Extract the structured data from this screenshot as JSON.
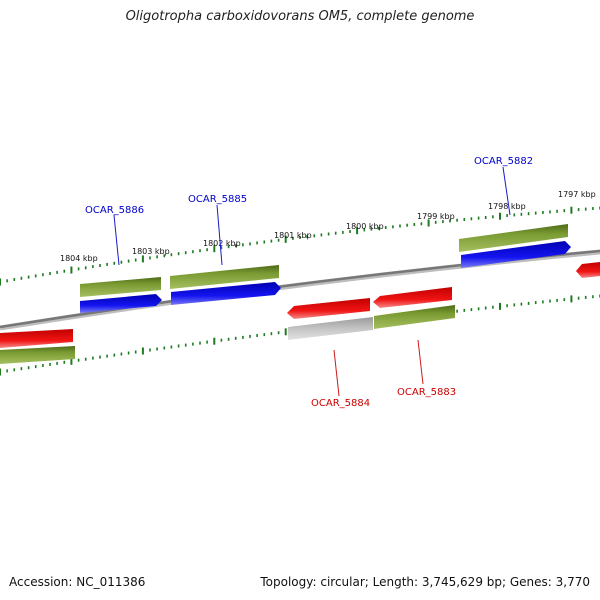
{
  "title": "Oligotropha carboxidovorans OM5, complete genome",
  "footer": {
    "accession": "Accession: NC_011386",
    "summary": "Topology: circular; Length: 3,745,629 bp; Genes: 3,770"
  },
  "colors": {
    "backbone": "#7a7a7a",
    "forward_cds": "#0a0ae6",
    "reverse_cds": "#e60a0a",
    "gene": "#6b8a2a",
    "pseudo": "#b4b4b4",
    "tick": "#1f7a1f",
    "forward_label": "#0000cc",
    "reverse_label": "#cc0000"
  },
  "axis": {
    "tick_labels": [
      "1804 kbp",
      "1803 kbp",
      "1802 kbp",
      "1801 kbp",
      "1800 kbp",
      "1799 kbp",
      "1798 kbp",
      "1797 kbp"
    ]
  },
  "genes": [
    {
      "name": "OCAR_5886",
      "strand": "forward"
    },
    {
      "name": "OCAR_5885",
      "strand": "forward"
    },
    {
      "name": "OCAR_5882",
      "strand": "forward"
    },
    {
      "name": "OCAR_5884",
      "strand": "reverse"
    },
    {
      "name": "OCAR_5883",
      "strand": "reverse"
    }
  ]
}
